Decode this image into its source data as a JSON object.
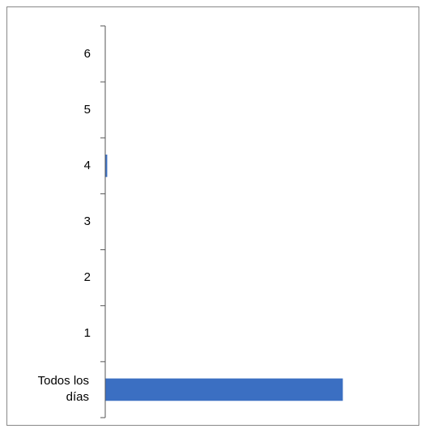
{
  "chart_data": {
    "type": "hbar",
    "categories": [
      "Todos los días",
      "1",
      "2",
      "3",
      "4",
      "5",
      "6"
    ],
    "values": [
      30,
      0,
      0,
      0,
      0.2,
      0,
      0
    ],
    "color": "#3b6fc2"
  }
}
